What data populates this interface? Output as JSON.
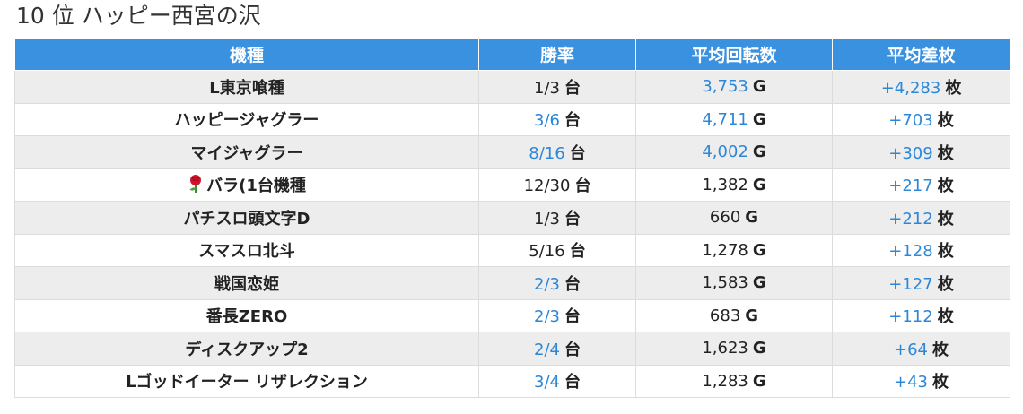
{
  "title": "10 位 ハッピー西宮の沢",
  "colors": {
    "header_bg": "#3a91df",
    "link_blue": "#2b87d8",
    "row_stripe": "#ededed"
  },
  "table": {
    "headers": [
      "機種",
      "勝率",
      "平均回転数",
      "平均差枚"
    ],
    "rows": [
      {
        "machine": "L東京喰種",
        "icon": "",
        "win": "1/3",
        "win_unit": "台",
        "win_blue": false,
        "spins": "3,753",
        "spins_unit": "G",
        "spins_blue": true,
        "diff": "+4,283",
        "diff_unit": "枚",
        "diff_blue": true
      },
      {
        "machine": "ハッピージャグラー",
        "icon": "",
        "win": "3/6",
        "win_unit": "台",
        "win_blue": true,
        "spins": "4,711",
        "spins_unit": "G",
        "spins_blue": true,
        "diff": "+703",
        "diff_unit": "枚",
        "diff_blue": true
      },
      {
        "machine": "マイジャグラー",
        "icon": "",
        "win": "8/16",
        "win_unit": "台",
        "win_blue": true,
        "spins": "4,002",
        "spins_unit": "G",
        "spins_blue": true,
        "diff": "+309",
        "diff_unit": "枚",
        "diff_blue": true
      },
      {
        "machine": "バラ(1台機種",
        "icon": "rose-icon",
        "win": "12/30",
        "win_unit": "台",
        "win_blue": false,
        "spins": "1,382",
        "spins_unit": "G",
        "spins_blue": false,
        "diff": "+217",
        "diff_unit": "枚",
        "diff_blue": true
      },
      {
        "machine": "パチスロ頭文字D",
        "icon": "",
        "win": "1/3",
        "win_unit": "台",
        "win_blue": false,
        "spins": "660",
        "spins_unit": "G",
        "spins_blue": false,
        "diff": "+212",
        "diff_unit": "枚",
        "diff_blue": true
      },
      {
        "machine": "スマスロ北斗",
        "icon": "",
        "win": "5/16",
        "win_unit": "台",
        "win_blue": false,
        "spins": "1,278",
        "spins_unit": "G",
        "spins_blue": false,
        "diff": "+128",
        "diff_unit": "枚",
        "diff_blue": true
      },
      {
        "machine": "戦国恋姫",
        "icon": "",
        "win": "2/3",
        "win_unit": "台",
        "win_blue": true,
        "spins": "1,583",
        "spins_unit": "G",
        "spins_blue": false,
        "diff": "+127",
        "diff_unit": "枚",
        "diff_blue": true
      },
      {
        "machine": "番長ZERO",
        "icon": "",
        "win": "2/3",
        "win_unit": "台",
        "win_blue": true,
        "spins": "683",
        "spins_unit": "G",
        "spins_blue": false,
        "diff": "+112",
        "diff_unit": "枚",
        "diff_blue": true
      },
      {
        "machine": "ディスクアップ2",
        "icon": "",
        "win": "2/4",
        "win_unit": "台",
        "win_blue": true,
        "spins": "1,623",
        "spins_unit": "G",
        "spins_blue": false,
        "diff": "+64",
        "diff_unit": "枚",
        "diff_blue": true
      },
      {
        "machine": "Lゴッドイーター リザレクション",
        "icon": "",
        "win": "3/4",
        "win_unit": "台",
        "win_blue": true,
        "spins": "1,283",
        "spins_unit": "G",
        "spins_blue": false,
        "diff": "+43",
        "diff_unit": "枚",
        "diff_blue": true
      }
    ]
  }
}
